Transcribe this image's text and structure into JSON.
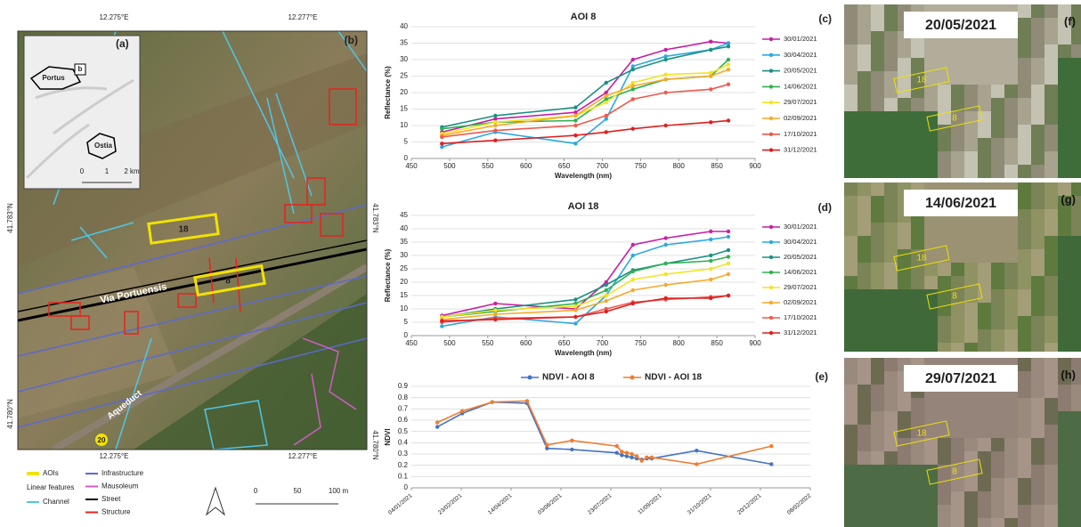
{
  "map": {
    "panel_label": "(b)",
    "inset_label": "(a)",
    "inset": {
      "places": [
        "Portus",
        "Ostia"
      ],
      "box_label": "b",
      "scale": [
        0,
        1,
        "2 km"
      ]
    },
    "coords_top": [
      "12.275°E",
      "12.277°E"
    ],
    "coords_bottom": [
      "12.275°E",
      "12.277°E"
    ],
    "coords_left": [
      "41.783°N",
      "41.780°N"
    ],
    "coords_right": [
      "41.783°N",
      "41.780°N"
    ],
    "labels": {
      "aoi_18": "18",
      "aoi_8": "8",
      "road": "Via Portuensis",
      "aqueduct": "Aqueduct",
      "aoi_20": "20"
    },
    "legend": {
      "aois": {
        "name": "AOIs",
        "color": "#f2e200"
      },
      "heading": "Linear features",
      "items": [
        {
          "name": "Channel",
          "color": "#4fc6e8"
        },
        {
          "name": "Infrastructure",
          "color": "#5b6ad0"
        },
        {
          "name": "Mausoleum",
          "color": "#d05cc4"
        },
        {
          "name": "Street",
          "color": "#000000"
        },
        {
          "name": "Structure",
          "color": "#e8231e"
        }
      ]
    },
    "scale": [
      0,
      50,
      "100 m"
    ]
  },
  "chart_data": [
    {
      "type": "line",
      "title": "AOI 8",
      "panel_label": "(c)",
      "x_label": "Wavelength (nm)",
      "y_label": "Reflectance (%)",
      "x": [
        490,
        560,
        665,
        705,
        740,
        783,
        842,
        865
      ],
      "xlim": [
        450,
        900
      ],
      "xticks": [
        450,
        500,
        550,
        600,
        650,
        700,
        750,
        800,
        850,
        900
      ],
      "ylim": [
        0,
        40
      ],
      "yticks": [
        0,
        5,
        10,
        15,
        20,
        25,
        30,
        35,
        40
      ],
      "grid": true,
      "legend": "right",
      "series": [
        {
          "name": "30/01/2021",
          "color": "#c71fa3",
          "values": [
            8,
            12,
            14,
            20,
            30,
            33,
            35.5,
            35
          ]
        },
        {
          "name": "30/04/2021",
          "color": "#29a9e1",
          "values": [
            3.5,
            8,
            4.5,
            12,
            28,
            31,
            33,
            35
          ]
        },
        {
          "name": "20/05/2021",
          "color": "#1b8f82",
          "values": [
            9.5,
            13,
            15.5,
            23,
            27,
            30,
            33,
            34
          ]
        },
        {
          "name": "14/06/2021",
          "color": "#2fb152",
          "values": [
            9,
            11,
            11.5,
            18,
            21,
            24,
            25,
            30
          ]
        },
        {
          "name": "29/07/2021",
          "color": "#f2e421",
          "values": [
            7.5,
            11,
            13,
            17,
            23,
            25.5,
            26,
            28.5
          ]
        },
        {
          "name": "02/09/2021",
          "color": "#f7a928",
          "values": [
            7,
            10,
            13,
            19,
            22,
            24,
            25,
            27
          ]
        },
        {
          "name": "17/10/2021",
          "color": "#f0584c",
          "values": [
            6.5,
            8.5,
            10,
            13,
            18,
            20,
            21,
            22.5
          ]
        },
        {
          "name": "31/12/2021",
          "color": "#e01e1e",
          "values": [
            4.5,
            5.5,
            7,
            8,
            9,
            10,
            11,
            11.5
          ]
        }
      ]
    },
    {
      "type": "line",
      "title": "AOI 18",
      "panel_label": "(d)",
      "x_label": "Wavelength (nm)",
      "y_label": "Reflectance (%)",
      "x": [
        490,
        560,
        665,
        705,
        740,
        783,
        842,
        865
      ],
      "xlim": [
        450,
        900
      ],
      "xticks": [
        450,
        500,
        550,
        600,
        650,
        700,
        750,
        800,
        850,
        900
      ],
      "ylim": [
        0,
        45
      ],
      "yticks": [
        0,
        5,
        10,
        15,
        20,
        25,
        30,
        35,
        40,
        45
      ],
      "grid": true,
      "legend": "right",
      "series": [
        {
          "name": "30/01/2021",
          "color": "#c71fa3",
          "values": [
            7.5,
            12,
            10,
            20,
            34,
            36.5,
            39,
            39
          ]
        },
        {
          "name": "30/04/2021",
          "color": "#29a9e1",
          "values": [
            3.5,
            7,
            4.5,
            15,
            30,
            34,
            36,
            37
          ]
        },
        {
          "name": "20/05/2021",
          "color": "#1b8f82",
          "values": [
            7,
            10,
            13.5,
            19,
            24.5,
            27,
            30,
            32
          ]
        },
        {
          "name": "14/06/2021",
          "color": "#2fb152",
          "values": [
            7,
            9,
            12,
            17,
            24,
            27,
            28,
            29.5
          ]
        },
        {
          "name": "29/07/2021",
          "color": "#f2e421",
          "values": [
            7,
            9.5,
            11,
            15,
            21,
            23,
            25,
            27
          ]
        },
        {
          "name": "02/09/2021",
          "color": "#f7a928",
          "values": [
            6,
            8,
            9.5,
            13,
            17,
            19,
            21,
            23
          ]
        },
        {
          "name": "17/10/2021",
          "color": "#f0584c",
          "values": [
            5,
            6.5,
            7,
            10,
            12.5,
            13.5,
            14.5,
            15
          ]
        },
        {
          "name": "31/12/2021",
          "color": "#e01e1e",
          "values": [
            5.5,
            6,
            7,
            9,
            12,
            14,
            14,
            15
          ]
        }
      ]
    },
    {
      "type": "line",
      "panel_label": "(e)",
      "y_label": "NDVI",
      "x": [
        "2021-01-30",
        "2021-02-24",
        "2021-03-26",
        "2021-04-30",
        "2021-05-20",
        "2021-06-14",
        "2021-07-29",
        "2021-08-03",
        "2021-08-08",
        "2021-08-13",
        "2021-08-18",
        "2021-08-23",
        "2021-08-28",
        "2021-09-02",
        "2021-10-17",
        "2021-12-31"
      ],
      "xlim": [
        "2021-01-04",
        "2022-02-08"
      ],
      "xticks": [
        {
          "value": "2021-01-04",
          "label": "04/01/2021"
        },
        {
          "value": "2021-02-23",
          "label": "23/02/2021"
        },
        {
          "value": "2021-04-14",
          "label": "14/04/2021"
        },
        {
          "value": "2021-06-03",
          "label": "03/06/2021"
        },
        {
          "value": "2021-07-23",
          "label": "23/07/2021"
        },
        {
          "value": "2021-09-11",
          "label": "11/09/2021"
        },
        {
          "value": "2021-10-31",
          "label": "31/10/2021"
        },
        {
          "value": "2021-12-20",
          "label": "20/12/2021"
        },
        {
          "value": "2022-02-08",
          "label": "08/02/2022"
        }
      ],
      "ylim": [
        0,
        0.9
      ],
      "yticks": [
        0,
        0.1,
        0.2,
        0.3,
        0.4,
        0.5,
        0.6,
        0.7,
        0.8,
        0.9
      ],
      "grid": true,
      "legend": "top",
      "series": [
        {
          "name": "NDVI - AOI 8",
          "color": "#4472c4",
          "values": [
            0.54,
            0.66,
            0.76,
            0.75,
            0.35,
            0.34,
            0.31,
            0.29,
            0.28,
            0.27,
            0.26,
            0.25,
            0.26,
            0.26,
            0.33,
            0.21
          ]
        },
        {
          "name": "NDVI - AOI 18",
          "color": "#ed7d31",
          "values": [
            0.58,
            0.68,
            0.76,
            0.77,
            0.38,
            0.42,
            0.37,
            0.32,
            0.31,
            0.3,
            0.28,
            0.24,
            0.27,
            0.27,
            0.21,
            0.37
          ]
        }
      ]
    }
  ],
  "images": [
    {
      "date": "20/05/2021",
      "panel_label": "(f)",
      "aois": [
        "18",
        "8"
      ]
    },
    {
      "date": "14/06/2021",
      "panel_label": "(g)",
      "aois": [
        "18",
        "8"
      ]
    },
    {
      "date": "29/07/2021",
      "panel_label": "(h)",
      "aois": [
        "18",
        "8"
      ]
    }
  ]
}
